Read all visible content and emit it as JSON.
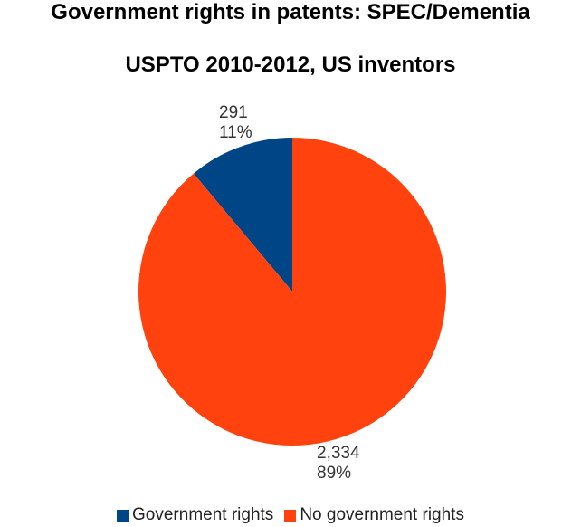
{
  "chart_data": {
    "type": "pie",
    "title": "Government rights in patents: SPEC/Dementia",
    "subtitle": "USPTO 2010-2012, US inventors",
    "categories": [
      "Government rights",
      "No government rights"
    ],
    "values": [
      291,
      2334
    ],
    "value_labels": [
      "291",
      "2,334"
    ],
    "percent_labels": [
      "11%",
      "89%"
    ],
    "colors": [
      "#004586",
      "#FF420E"
    ],
    "legend_position": "bottom"
  }
}
